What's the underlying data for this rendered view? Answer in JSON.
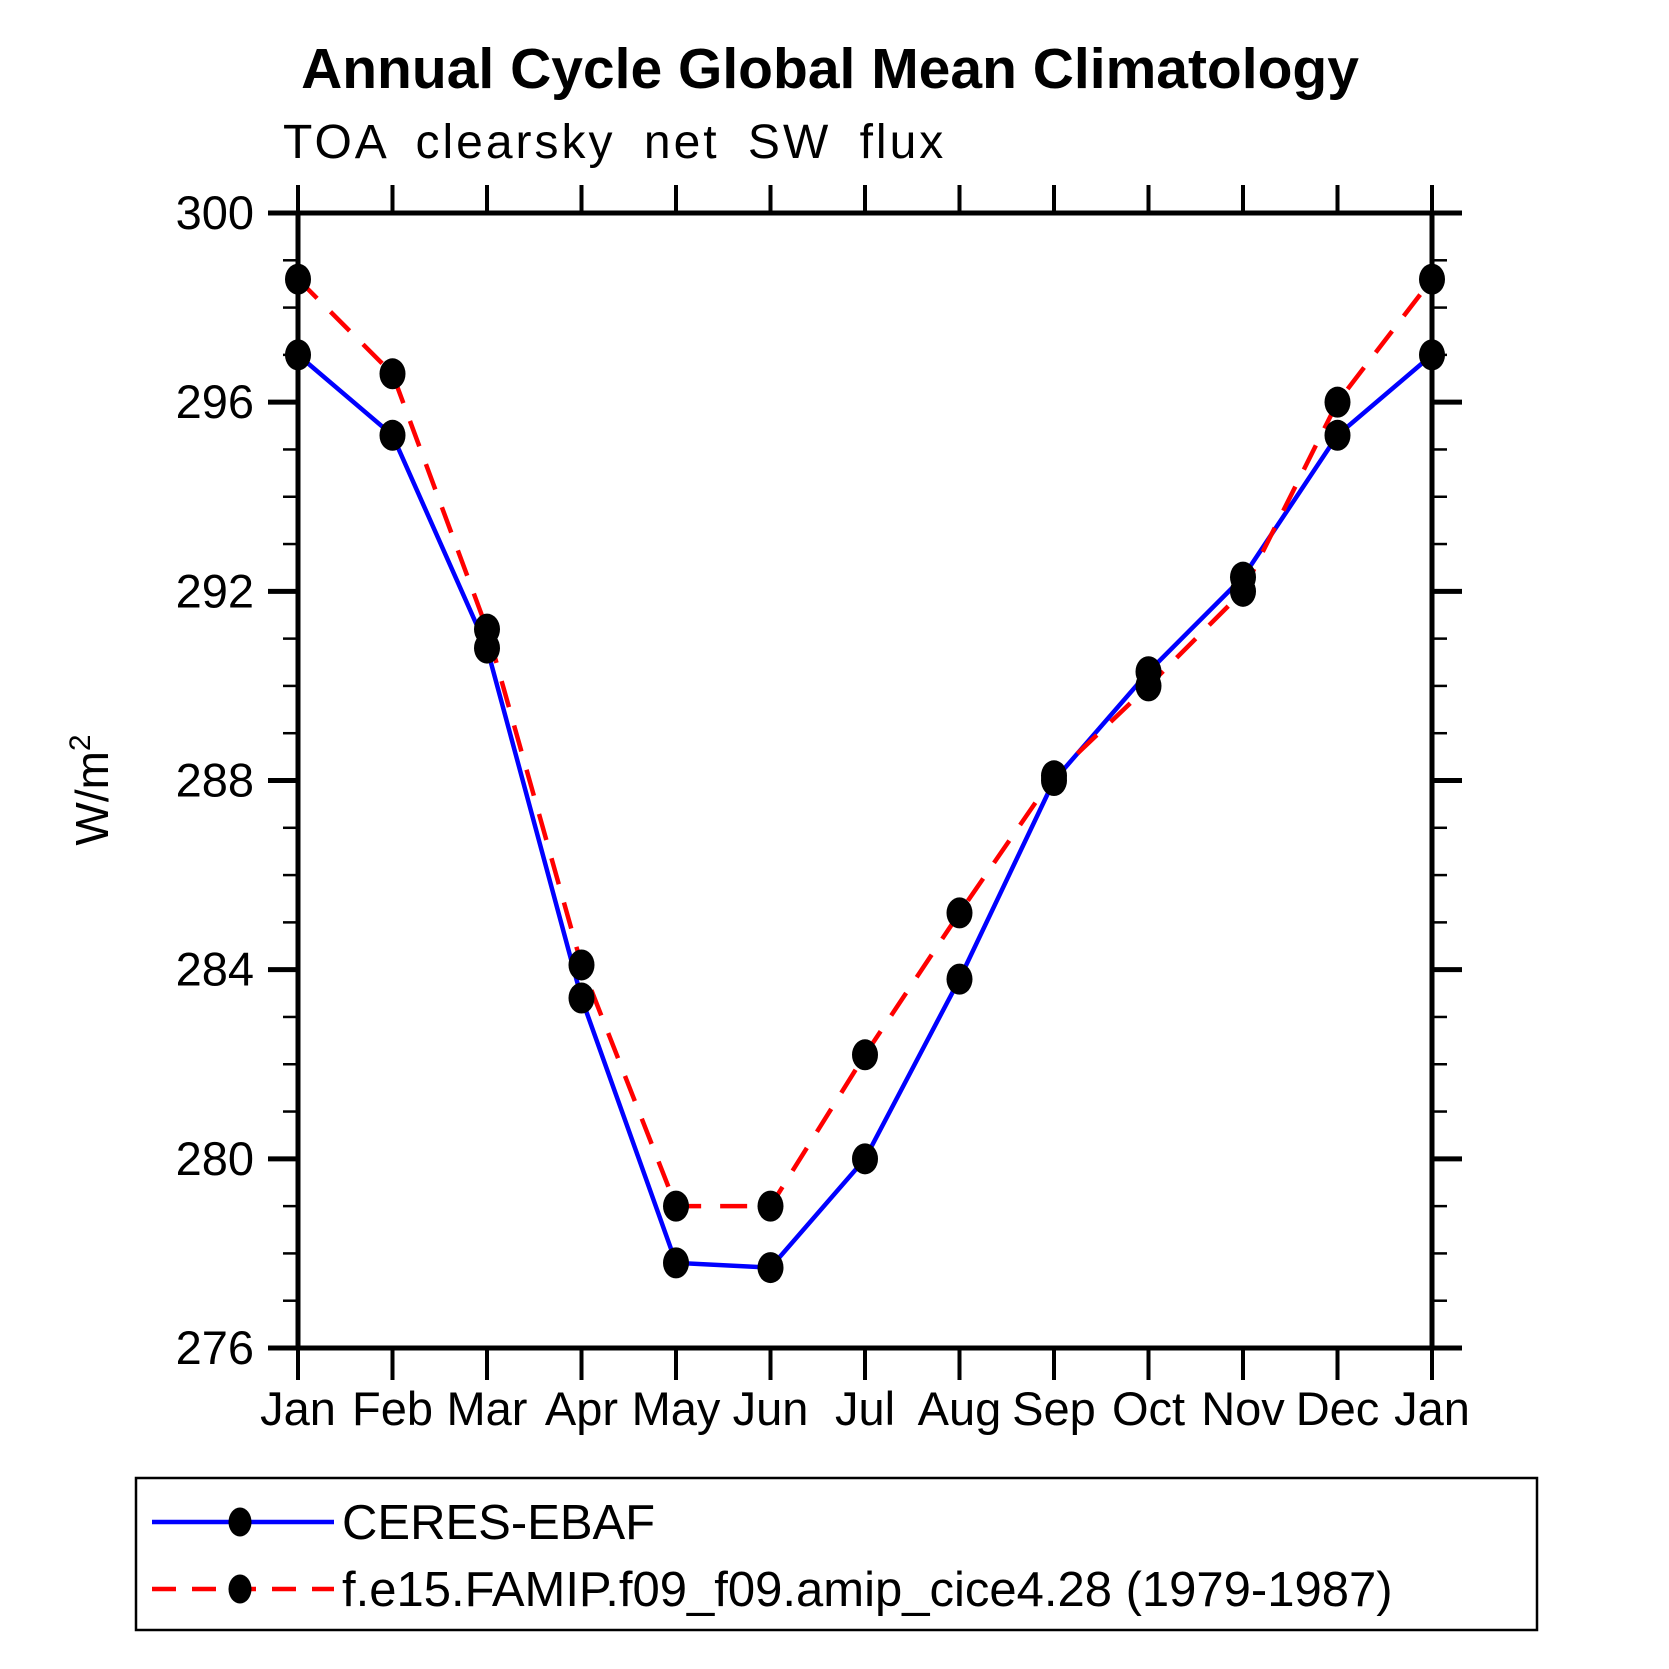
{
  "chart_data": {
    "type": "line",
    "title": "Annual Cycle Global Mean Climatology",
    "subtitle": "TOA clearsky net SW flux",
    "ylabel": "W/m²",
    "x_categories": [
      "Jan",
      "Feb",
      "Mar",
      "Apr",
      "May",
      "Jun",
      "Jul",
      "Aug",
      "Sep",
      "Oct",
      "Nov",
      "Dec",
      "Jan"
    ],
    "ylim": [
      276,
      300
    ],
    "y_major_ticks": [
      276,
      280,
      284,
      288,
      292,
      296,
      300
    ],
    "y_minor_step": 1,
    "grid": false,
    "legend_position": "bottom-box",
    "marker": {
      "shape": "filled-circle",
      "color": "#000000"
    },
    "series": [
      {
        "name": "CERES-EBAF",
        "color": "#0000ff",
        "line_style": "solid",
        "values": [
          297.0,
          295.3,
          290.8,
          283.4,
          277.8,
          277.7,
          280.0,
          283.8,
          288.0,
          290.3,
          292.3,
          295.3,
          297.0
        ]
      },
      {
        "name": "f.e15.FAMIP.f09_f09.amip_cice4.28 (1979-1987)",
        "color": "#ff0000",
        "line_style": "dashed",
        "values": [
          298.6,
          296.6,
          291.2,
          284.1,
          279.0,
          279.0,
          282.2,
          285.2,
          288.1,
          290.0,
          292.0,
          296.0,
          298.6
        ]
      }
    ]
  }
}
